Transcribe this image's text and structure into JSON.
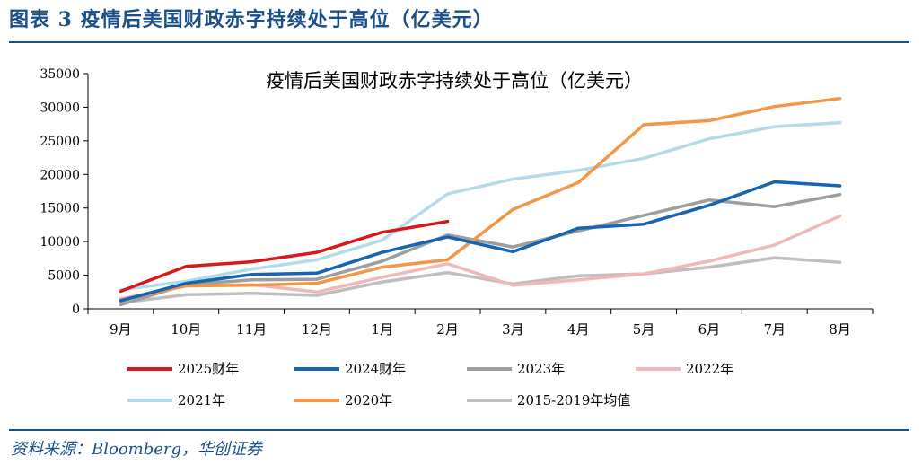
{
  "header": {
    "figure_title": "图表 3   疫情后美国财政赤字持续处于高位（亿美元）"
  },
  "source_note": "资料来源：Bloomberg，华创证券",
  "chart_data": {
    "type": "line",
    "title": "疫情后美国财政赤字持续处于高位（亿美元）",
    "xlabel": "",
    "ylabel": "",
    "categories": [
      "9月",
      "10月",
      "11月",
      "12月",
      "1月",
      "2月",
      "3月",
      "4月",
      "5月",
      "6月",
      "7月",
      "8月"
    ],
    "ylim": [
      0,
      35000
    ],
    "yticks": [
      "0",
      "5000",
      "10000",
      "15000",
      "20000",
      "25000",
      "30000",
      "35000"
    ],
    "grid": false,
    "legend_position": "bottom",
    "series": [
      {
        "name": "2025财年",
        "color": "#d7191c",
        "values": [
          2600,
          6300,
          7000,
          8400,
          11400,
          13000,
          null,
          null,
          null,
          null,
          null,
          null
        ]
      },
      {
        "name": "2024财年",
        "color": "#1565b0",
        "values": [
          1200,
          3800,
          5100,
          5300,
          8400,
          10700,
          8500,
          12000,
          12600,
          15400,
          18900,
          18300
        ]
      },
      {
        "name": "2023年",
        "color": "#9e9e9e",
        "values": [
          600,
          3600,
          4300,
          4400,
          7100,
          11000,
          9200,
          11600,
          13900,
          16200,
          15200,
          17000
        ]
      },
      {
        "name": "2022年",
        "color": "#f2b8b8",
        "values": [
          1500,
          3400,
          3600,
          2500,
          4700,
          6700,
          3500,
          4300,
          5200,
          7100,
          9500,
          13800
        ]
      },
      {
        "name": "2021年",
        "color": "#b3dbe8",
        "values": [
          2800,
          4100,
          5900,
          7300,
          10200,
          17100,
          19300,
          20600,
          22400,
          25300,
          27100,
          27700
        ]
      },
      {
        "name": "2020年",
        "color": "#f39647",
        "values": [
          1300,
          3400,
          3500,
          3800,
          6200,
          7300,
          14800,
          18800,
          27400,
          28000,
          30100,
          31300
        ]
      },
      {
        "name": "2015-2019年均值",
        "color": "#bfbfbf",
        "values": [
          900,
          2100,
          2300,
          2000,
          4000,
          5400,
          3700,
          4900,
          5200,
          6200,
          7600,
          6900
        ]
      }
    ]
  }
}
